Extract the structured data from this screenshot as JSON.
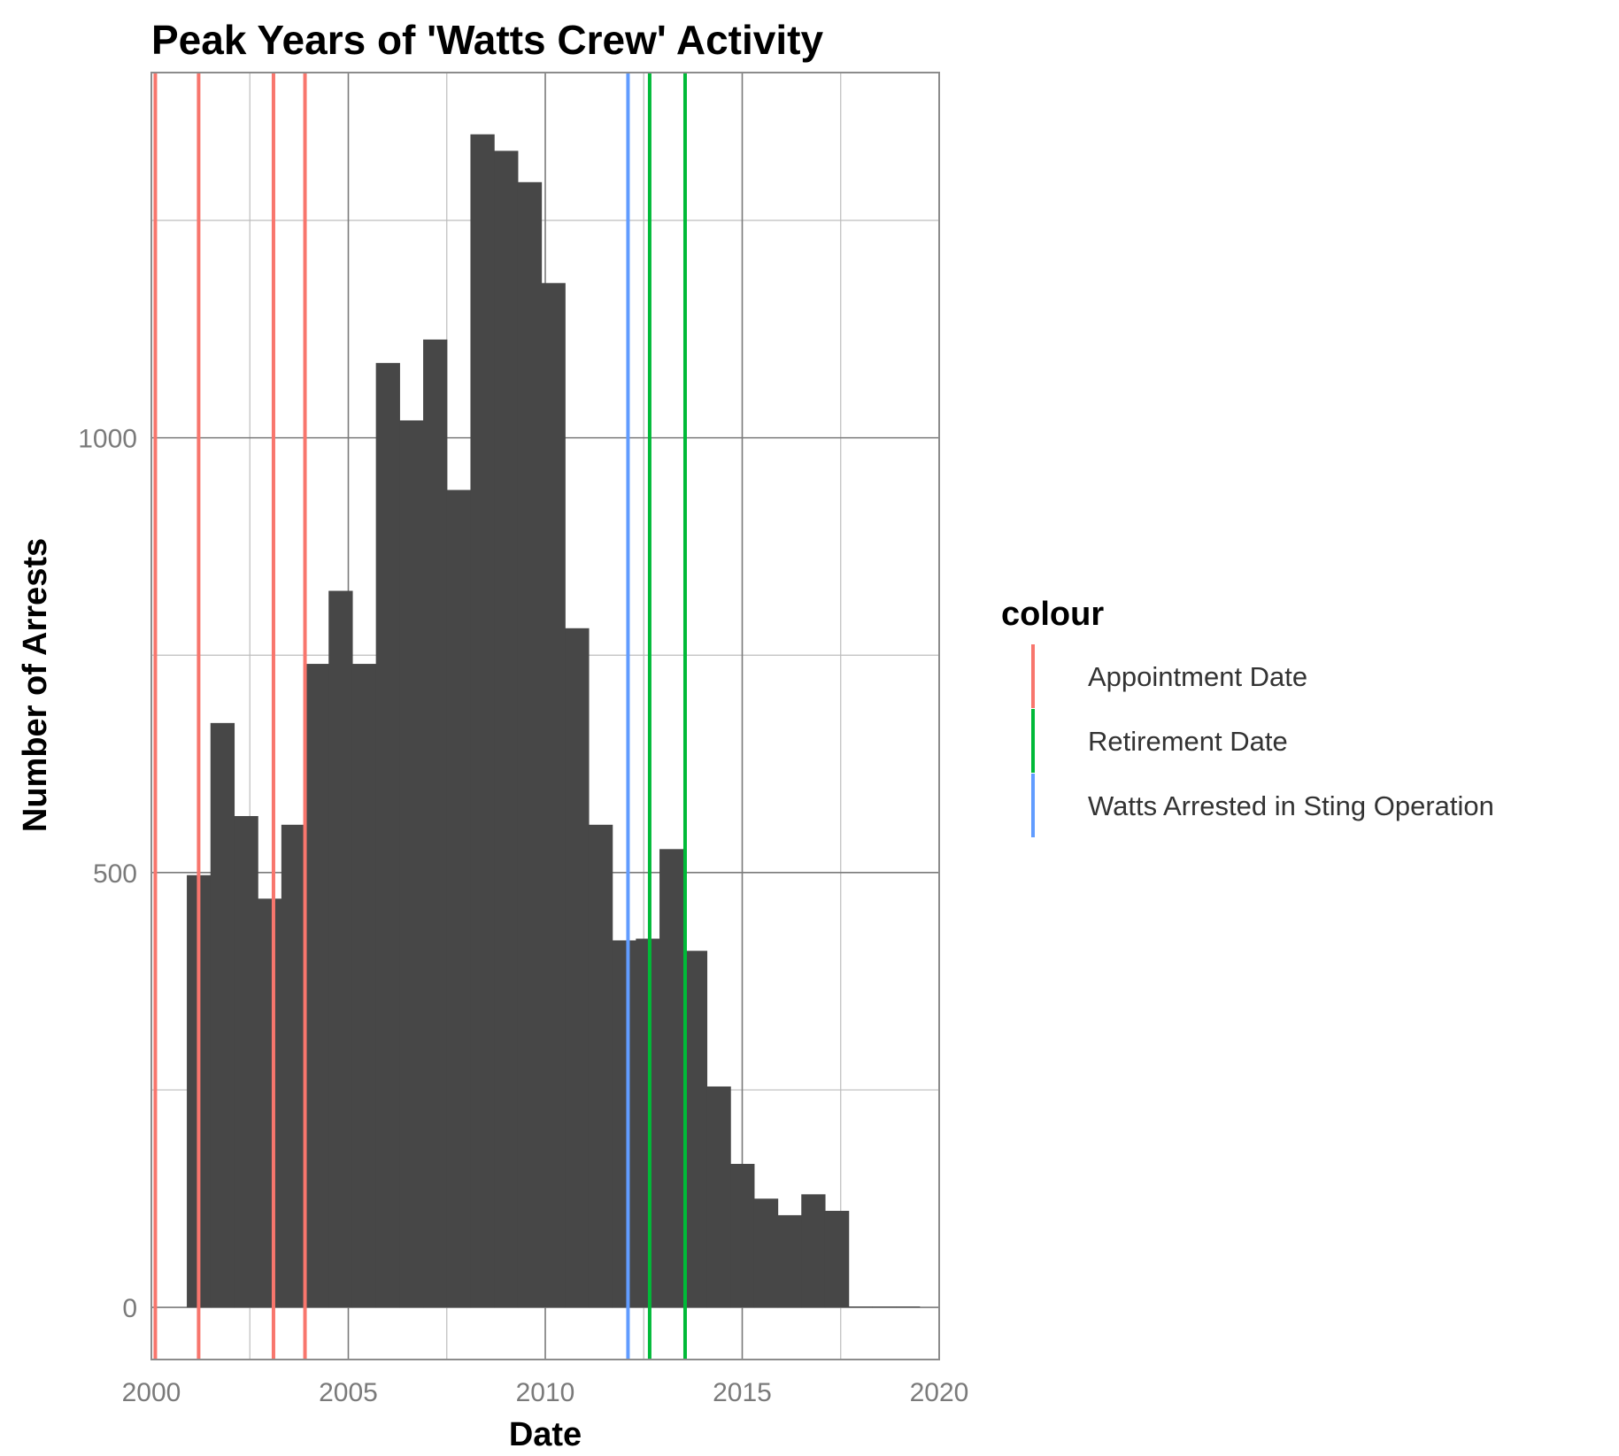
{
  "chart_data": {
    "type": "bar",
    "title": "Peak Years of 'Watts Crew' Activity",
    "xlabel": "Date",
    "ylabel": "Number of Arrests",
    "xlim": [
      2000,
      2020
    ],
    "ylim": [
      -60,
      1420
    ],
    "x_ticks": [
      2000,
      2005,
      2010,
      2015,
      2020
    ],
    "y_ticks": [
      0,
      500,
      1000
    ],
    "grid": true,
    "bar_color": "#474747",
    "bins": [
      {
        "start": 2000.9,
        "end": 2001.5,
        "value": 497
      },
      {
        "start": 2001.5,
        "end": 2002.1,
        "value": 672
      },
      {
        "start": 2002.1,
        "end": 2002.7,
        "value": 565
      },
      {
        "start": 2002.7,
        "end": 2003.3,
        "value": 470
      },
      {
        "start": 2003.3,
        "end": 2003.9,
        "value": 555
      },
      {
        "start": 2003.9,
        "end": 2004.5,
        "value": 740
      },
      {
        "start": 2004.5,
        "end": 2005.1,
        "value": 824
      },
      {
        "start": 2005.1,
        "end": 2005.7,
        "value": 740
      },
      {
        "start": 2005.7,
        "end": 2006.3,
        "value": 1086
      },
      {
        "start": 2006.3,
        "end": 2006.9,
        "value": 1020
      },
      {
        "start": 2006.9,
        "end": 2007.5,
        "value": 1113
      },
      {
        "start": 2007.5,
        "end": 2008.1,
        "value": 940
      },
      {
        "start": 2008.1,
        "end": 2008.7,
        "value": 1349
      },
      {
        "start": 2008.7,
        "end": 2009.3,
        "value": 1330
      },
      {
        "start": 2009.3,
        "end": 2009.9,
        "value": 1294
      },
      {
        "start": 2009.9,
        "end": 2010.5,
        "value": 1178
      },
      {
        "start": 2010.5,
        "end": 2011.1,
        "value": 781
      },
      {
        "start": 2011.1,
        "end": 2011.7,
        "value": 555
      },
      {
        "start": 2011.7,
        "end": 2012.3,
        "value": 422
      },
      {
        "start": 2012.3,
        "end": 2012.9,
        "value": 424
      },
      {
        "start": 2012.9,
        "end": 2013.5,
        "value": 527
      },
      {
        "start": 2013.5,
        "end": 2014.1,
        "value": 410
      },
      {
        "start": 2014.1,
        "end": 2014.7,
        "value": 254
      },
      {
        "start": 2014.7,
        "end": 2015.3,
        "value": 165
      },
      {
        "start": 2015.3,
        "end": 2015.9,
        "value": 125
      },
      {
        "start": 2015.9,
        "end": 2016.5,
        "value": 106
      },
      {
        "start": 2016.5,
        "end": 2017.1,
        "value": 130
      },
      {
        "start": 2017.1,
        "end": 2017.7,
        "value": 111
      },
      {
        "start": 2017.7,
        "end": 2018.3,
        "value": 0
      },
      {
        "start": 2018.3,
        "end": 2018.9,
        "value": 0
      },
      {
        "start": 2018.9,
        "end": 2019.5,
        "value": 1
      }
    ],
    "vlines": [
      {
        "x": 2000.1,
        "group": "Appointment Date"
      },
      {
        "x": 2001.2,
        "group": "Appointment Date"
      },
      {
        "x": 2003.1,
        "group": "Appointment Date"
      },
      {
        "x": 2003.9,
        "group": "Appointment Date"
      },
      {
        "x": 2012.1,
        "group": "Watts Arrested in Sting Operation"
      },
      {
        "x": 2012.65,
        "group": "Retirement Date"
      },
      {
        "x": 2013.55,
        "group": "Retirement Date"
      }
    ],
    "legend": {
      "title": "colour",
      "position": "right",
      "items": [
        {
          "label": "Appointment Date",
          "color": "#F8766D"
        },
        {
          "label": "Retirement Date",
          "color": "#00BA38"
        },
        {
          "label": "Watts Arrested in Sting Operation",
          "color": "#619CFF"
        }
      ]
    }
  }
}
